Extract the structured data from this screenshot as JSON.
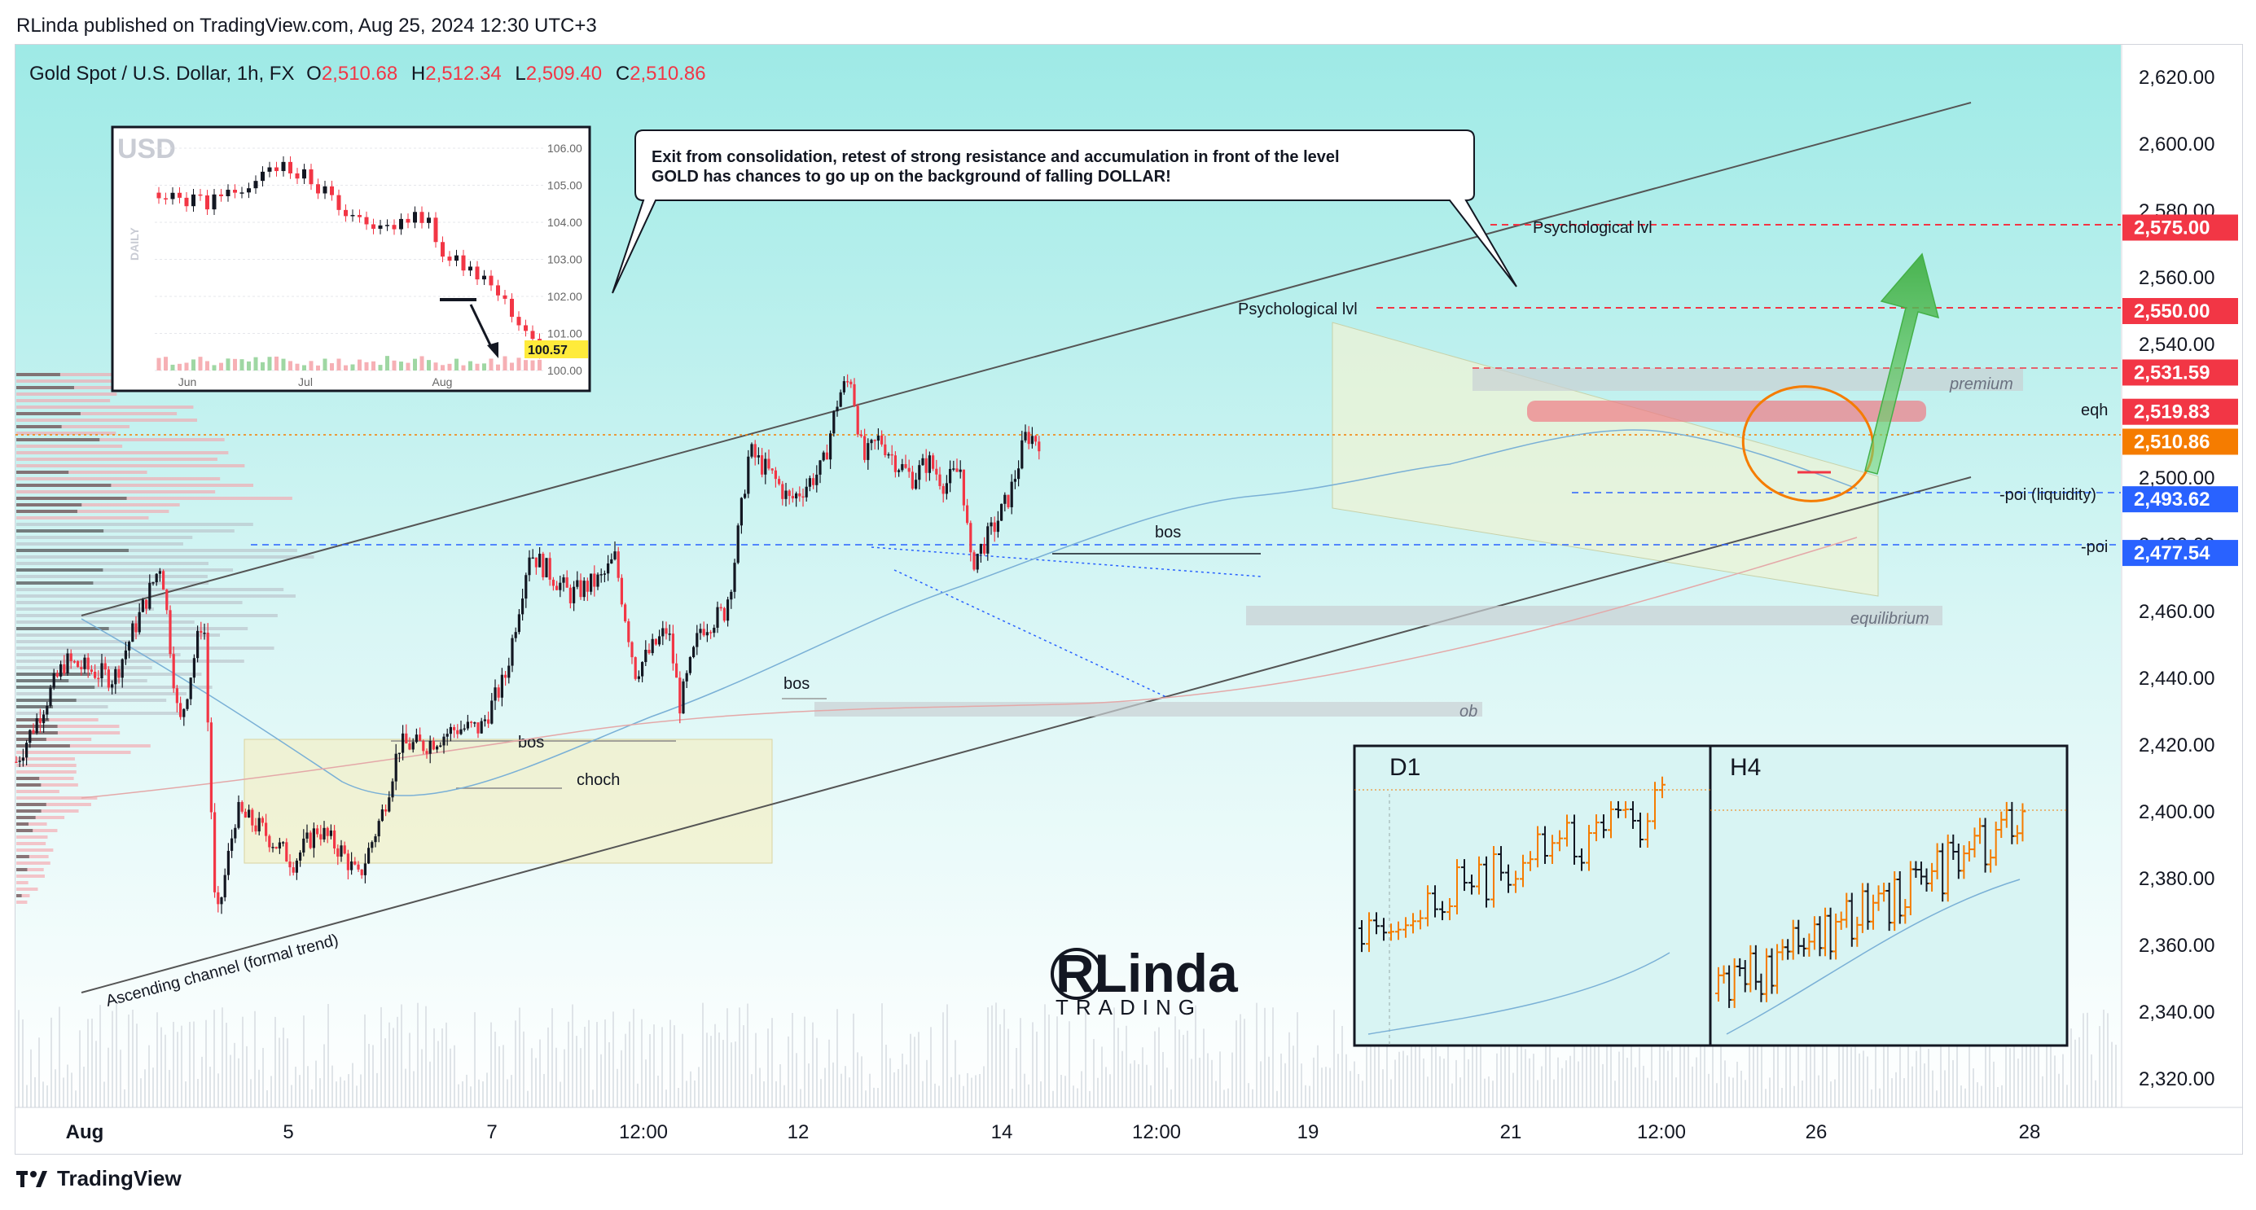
{
  "header": {
    "published": "RLinda published on TradingView.com, Aug 25, 2024 12:30 UTC+3"
  },
  "symbol": {
    "name": "Gold Spot / U.S. Dollar, 1h, FX",
    "o_label": "O",
    "o_value": "2,510.68",
    "h_label": "H",
    "h_value": "2,512.34",
    "l_label": "L",
    "l_value": "2,509.40",
    "c_label": "C",
    "c_value": "2,510.86"
  },
  "callout": {
    "line1": "Exit from consolidation, retest of strong resistance and accumulation in front of the level",
    "line2": "GOLD has chances to go up on the background of falling DOLLAR!"
  },
  "inset_usd": {
    "title": "USD",
    "side_label": "DAILY",
    "y_ticks": [
      "106.00",
      "105.00",
      "104.00",
      "103.00",
      "102.00",
      "101.00",
      "100.00"
    ],
    "x_ticks": [
      "Jun",
      "Jul",
      "Aug"
    ],
    "last_price": "100.57"
  },
  "annotations": {
    "psych1": "Psychological lvl",
    "psych2": "Psychological lvl",
    "bos1": "bos",
    "bos2": "bos",
    "bos3": "bos",
    "choch": "choch",
    "ob": "ob",
    "premium": "premium",
    "equilibrium": "equilibrium",
    "eqh": "eqh",
    "poi_liq": "-poi (liquidity)",
    "poi": "-poi",
    "channel": "Ascending channel (formal trend)"
  },
  "price_tags": [
    {
      "label": "2,575.00",
      "color": "#f23645"
    },
    {
      "label": "2,550.00",
      "color": "#f23645"
    },
    {
      "label": "2,531.59",
      "color": "#f23645"
    },
    {
      "label": "2,519.83",
      "color": "#f23645"
    },
    {
      "label": "2,510.86",
      "color": "#f57c00"
    },
    {
      "label": "2,493.62",
      "color": "#2962ff"
    },
    {
      "label": "2,477.54",
      "color": "#2962ff"
    }
  ],
  "mini_panels": {
    "d1": "D1",
    "h4": "H4"
  },
  "logo": {
    "line1": "RLinda",
    "line2": "TRADING"
  },
  "footer": {
    "brand": "TradingView"
  },
  "colors": {
    "bull": "#131722",
    "bear": "#f23645",
    "accent_orange": "#f57c00",
    "blue": "#2962ff",
    "background_top": "#a8ecea"
  },
  "chart_data": {
    "type": "candlestick",
    "title": "Gold Spot / U.S. Dollar, 1h, FX",
    "xlabel": "",
    "ylabel": "",
    "ylim": [
      2310,
      2628
    ],
    "y_ticks": [
      2320,
      2340,
      2360,
      2380,
      2400,
      2420,
      2440,
      2460,
      2480,
      2500,
      2520,
      2540,
      2560,
      2580,
      2600,
      2620
    ],
    "y_tick_labels": [
      "2,320.00",
      "2,340.00",
      "2,360.00",
      "2,380.00",
      "2,400.00",
      "2,420.00",
      "2,440.00",
      "2,460.00",
      "2,480.00",
      "2,500.00",
      "2,520.00",
      "2,540.00",
      "2,560.00",
      "2,580.00",
      "2,600.00",
      "2,620.00"
    ],
    "x_tick_labels": [
      "Aug",
      "5",
      "7",
      "12:00",
      "12",
      "14",
      "12:00",
      "19",
      "21",
      "12:00",
      "26",
      "28"
    ],
    "price_path": [
      [
        0,
        2415
      ],
      [
        60,
        2445
      ],
      [
        120,
        2440
      ],
      [
        170,
        2470
      ],
      [
        178,
        2475
      ],
      [
        200,
        2425
      ],
      [
        230,
        2460
      ],
      [
        245,
        2365
      ],
      [
        270,
        2400
      ],
      [
        300,
        2395
      ],
      [
        340,
        2385
      ],
      [
        370,
        2395
      ],
      [
        400,
        2388
      ],
      [
        420,
        2380
      ],
      [
        450,
        2400
      ],
      [
        470,
        2420
      ],
      [
        500,
        2420
      ],
      [
        540,
        2425
      ],
      [
        570,
        2425
      ],
      [
        600,
        2440
      ],
      [
        630,
        2478
      ],
      [
        680,
        2465
      ],
      [
        720,
        2470
      ],
      [
        735,
        2476
      ],
      [
        760,
        2442
      ],
      [
        800,
        2455
      ],
      [
        815,
        2432
      ],
      [
        840,
        2455
      ],
      [
        870,
        2460
      ],
      [
        880,
        2472
      ],
      [
        900,
        2508
      ],
      [
        930,
        2500
      ],
      [
        950,
        2493
      ],
      [
        990,
        2503
      ],
      [
        1010,
        2525
      ],
      [
        1025,
        2530
      ],
      [
        1040,
        2505
      ],
      [
        1060,
        2512
      ],
      [
        1080,
        2505
      ],
      [
        1100,
        2500
      ],
      [
        1120,
        2505
      ],
      [
        1140,
        2498
      ],
      [
        1160,
        2503
      ],
      [
        1172,
        2474
      ],
      [
        1200,
        2485
      ],
      [
        1220,
        2495
      ],
      [
        1240,
        2513
      ],
      [
        1260,
        2511
      ]
    ],
    "levels": [
      {
        "name": "Psychological lvl",
        "value": 2575.0
      },
      {
        "name": "Psychological lvl",
        "value": 2550.0
      },
      {
        "name": "premium",
        "value": 2531.59
      },
      {
        "name": "eqh",
        "value": 2519.83
      },
      {
        "name": "last",
        "value": 2510.86
      },
      {
        "name": "-poi (liquidity)",
        "value": 2493.62
      },
      {
        "name": "-poi",
        "value": 2477.54
      }
    ],
    "grid": false,
    "legend": "none"
  }
}
